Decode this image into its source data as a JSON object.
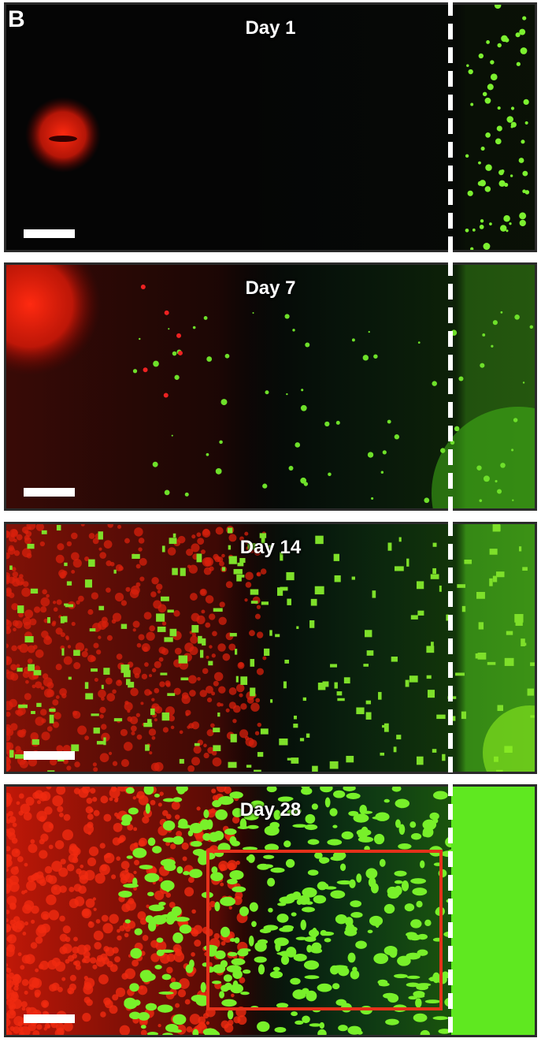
{
  "panel_label": "B",
  "panels": [
    {
      "title": "Day 1"
    },
    {
      "title": "Day 7"
    },
    {
      "title": "Day 14"
    },
    {
      "title": "Day 28"
    }
  ]
}
